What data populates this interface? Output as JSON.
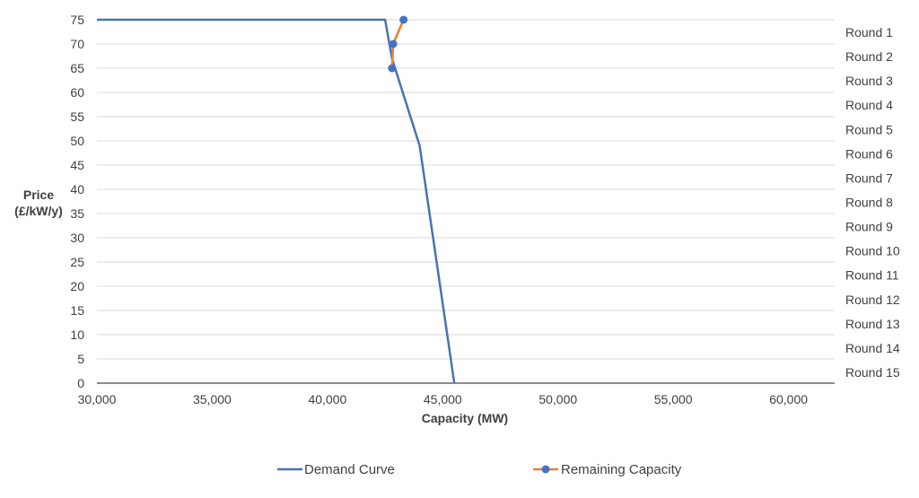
{
  "chart_data": {
    "type": "line",
    "xlabel": "Capacity (MW)",
    "ylabel_line1": "Price",
    "ylabel_line2": "(£/kW/y)",
    "xlim": [
      30000,
      62000
    ],
    "ylim": [
      0,
      75
    ],
    "grid": "horizontal",
    "legend_position": "bottom",
    "x_ticks": [
      30000,
      35000,
      40000,
      45000,
      50000,
      55000,
      60000
    ],
    "x_tick_labels": [
      "30,000",
      "35,000",
      "40,000",
      "45,000",
      "50,000",
      "55,000",
      "60,000"
    ],
    "y_ticks": [
      0,
      5,
      10,
      15,
      20,
      25,
      30,
      35,
      40,
      45,
      50,
      55,
      60,
      65,
      70,
      75
    ],
    "y_tick_labels": [
      "0",
      "5",
      "10",
      "15",
      "20",
      "25",
      "30",
      "35",
      "40",
      "45",
      "50",
      "55",
      "60",
      "65",
      "70",
      "75"
    ],
    "secondary_axis_labels": [
      "Round 1",
      "Round 2",
      "Round 3",
      "Round 4",
      "Round 5",
      "Round 6",
      "Round 7",
      "Round 8",
      "Round 9",
      "Round 10",
      "Round 11",
      "Round 12",
      "Round 13",
      "Round 14",
      "Round 15"
    ],
    "series": [
      {
        "name": "Demand Curve",
        "color": "#4a72b0",
        "marker": "none",
        "points": [
          {
            "x": 30000,
            "y": 75
          },
          {
            "x": 42500,
            "y": 75
          },
          {
            "x": 42800,
            "y": 67
          },
          {
            "x": 44000,
            "y": 49
          },
          {
            "x": 45500,
            "y": 0
          }
        ]
      },
      {
        "name": "Remaining Capacity",
        "color": "#ed7d31",
        "marker_color": "#4472c4",
        "marker": "circle",
        "points": [
          {
            "x": 43300,
            "y": 75
          },
          {
            "x": 42850,
            "y": 70
          },
          {
            "x": 42800,
            "y": 65
          }
        ]
      }
    ]
  }
}
